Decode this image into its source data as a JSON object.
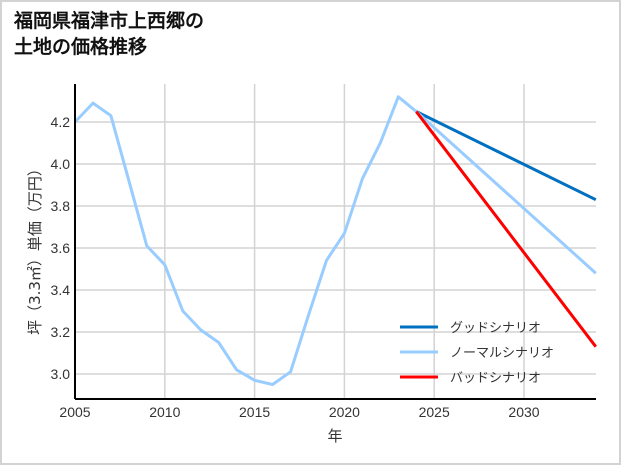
{
  "title_lines": [
    "福岡県福津市上西郷の",
    "土地の価格推移"
  ],
  "chart_data": {
    "type": "line",
    "title": "福岡県福津市上西郷の土地の価格推移",
    "xlabel": "年",
    "ylabel": "坪（3.3㎡）単価（万円）",
    "xlim": [
      2005,
      2034
    ],
    "ylim": [
      2.88,
      4.38
    ],
    "x_ticks": [
      2005,
      2010,
      2015,
      2020,
      2025,
      2030
    ],
    "y_ticks": [
      3.0,
      3.2,
      3.4,
      3.6,
      3.8,
      4.0,
      4.2
    ],
    "grid": true,
    "legend_position": "lower right",
    "series": [
      {
        "name": "ノーマルシナリオ (実績)",
        "color": "#99ccff",
        "x": [
          2005,
          2006,
          2007,
          2008,
          2009,
          2010,
          2011,
          2012,
          2013,
          2014,
          2015,
          2016,
          2017,
          2018,
          2019,
          2020,
          2021,
          2022,
          2023,
          2024
        ],
        "values": [
          4.2,
          4.29,
          4.23,
          3.92,
          3.61,
          3.52,
          3.3,
          3.21,
          3.15,
          3.02,
          2.97,
          2.95,
          3.01,
          3.28,
          3.54,
          3.67,
          3.93,
          4.1,
          4.32,
          4.25
        ]
      },
      {
        "name": "グッドシナリオ",
        "color": "#0070c0",
        "x": [
          2024,
          2034
        ],
        "values": [
          4.25,
          3.83
        ]
      },
      {
        "name": "ノーマルシナリオ",
        "color": "#99ccff",
        "x": [
          2024,
          2034
        ],
        "values": [
          4.25,
          3.48
        ]
      },
      {
        "name": "バッドシナリオ",
        "color": "#ff0000",
        "x": [
          2024,
          2034
        ],
        "values": [
          4.25,
          3.13
        ]
      }
    ]
  },
  "legend": [
    {
      "label": "グッドシナリオ",
      "color": "#0070c0"
    },
    {
      "label": "ノーマルシナリオ",
      "color": "#99ccff"
    },
    {
      "label": "バッドシナリオ",
      "color": "#ff0000"
    }
  ]
}
